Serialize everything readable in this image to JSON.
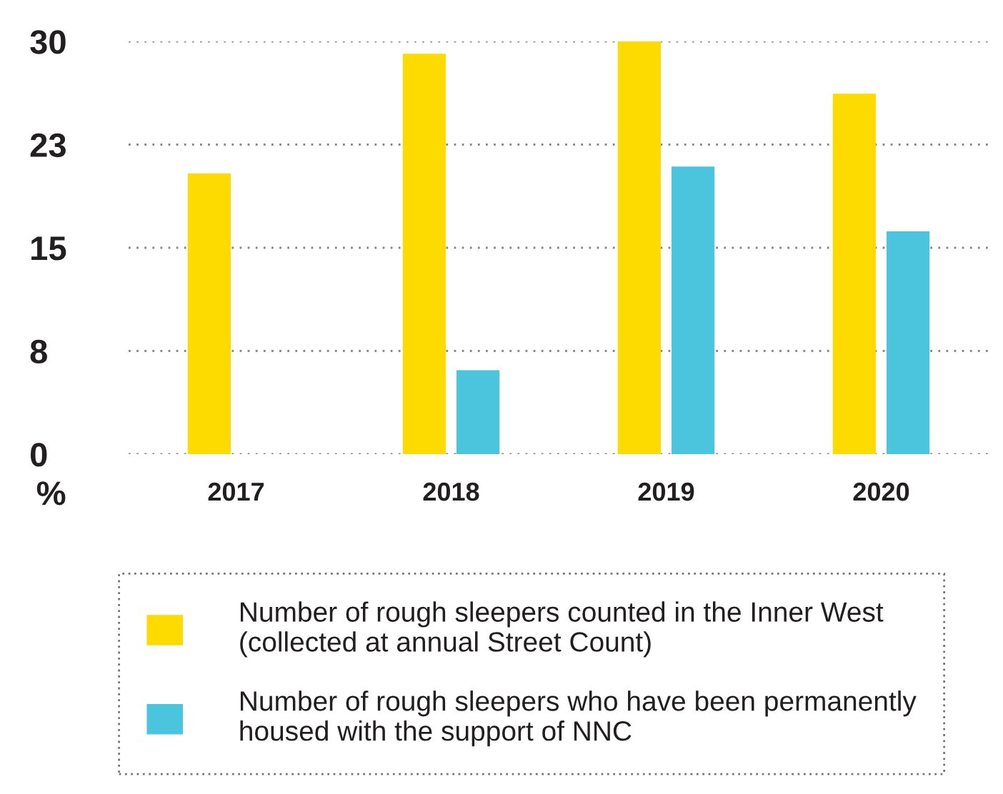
{
  "chart_data": {
    "type": "bar",
    "categories": [
      "2017",
      "2018",
      "2019",
      "2020"
    ],
    "ylabel": "%",
    "series": [
      {
        "name": "Number of rough sleepers counted in the Inner West\n(collected at annual Street Count)",
        "color": "#fedb00",
        "values": [
          20.4,
          29.1,
          30,
          26.2
        ]
      },
      {
        "name": "Number of rough sleepers who have been permanently\nhoused with the support of NNC",
        "color": "#4bc4de",
        "values": [
          null,
          6.1,
          20.9,
          16.2
        ]
      }
    ],
    "ylim": [
      0,
      30
    ],
    "yticks": [
      0,
      {
        "value": 7.5,
        "label": "8"
      },
      15,
      {
        "value": 22.5,
        "label": "23"
      },
      30
    ],
    "grid": "y",
    "legend": "bottom"
  }
}
